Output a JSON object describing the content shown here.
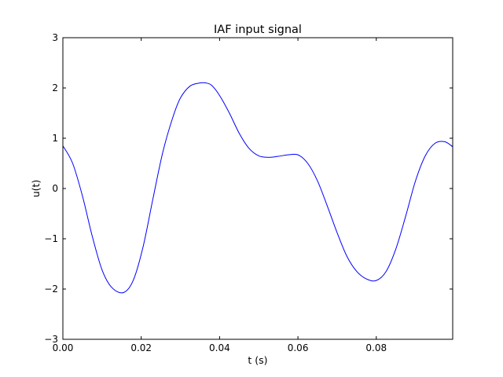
{
  "chart_data": {
    "type": "line",
    "title": "IAF input signal",
    "xlabel": "t (s)",
    "ylabel": "u(t)",
    "xlim": [
      0.0,
      0.0995
    ],
    "ylim": [
      -3,
      3
    ],
    "xticks": [
      0.0,
      0.02,
      0.04,
      0.06,
      0.08
    ],
    "xtick_labels": [
      "0.00",
      "0.02",
      "0.04",
      "0.06",
      "0.08"
    ],
    "yticks": [
      -3,
      -2,
      -1,
      0,
      1,
      2,
      3
    ],
    "ytick_labels": [
      "−3",
      "−2",
      "−1",
      "0",
      "1",
      "2",
      "3"
    ],
    "grid": false,
    "series": [
      {
        "color": "#0000ff",
        "x": [
          0.0,
          0.0025,
          0.005,
          0.0075,
          0.01,
          0.0125,
          0.0155,
          0.018,
          0.0205,
          0.023,
          0.0255,
          0.028,
          0.03,
          0.0325,
          0.035,
          0.0365,
          0.038,
          0.04,
          0.0425,
          0.045,
          0.0475,
          0.05,
          0.0525,
          0.055,
          0.0575,
          0.06,
          0.0625,
          0.065,
          0.0675,
          0.07,
          0.0725,
          0.075,
          0.0775,
          0.08,
          0.0825,
          0.085,
          0.0875,
          0.09,
          0.0925,
          0.095,
          0.0975,
          0.0995
        ],
        "y": [
          0.85,
          0.5,
          -0.15,
          -0.95,
          -1.62,
          -1.97,
          -2.07,
          -1.82,
          -1.15,
          -0.2,
          0.72,
          1.4,
          1.8,
          2.04,
          2.1,
          2.1,
          2.05,
          1.85,
          1.5,
          1.1,
          0.8,
          0.65,
          0.62,
          0.64,
          0.67,
          0.67,
          0.5,
          0.15,
          -0.35,
          -0.88,
          -1.35,
          -1.65,
          -1.8,
          -1.83,
          -1.65,
          -1.2,
          -0.55,
          0.15,
          0.65,
          0.9,
          0.93,
          0.83
        ]
      }
    ]
  }
}
